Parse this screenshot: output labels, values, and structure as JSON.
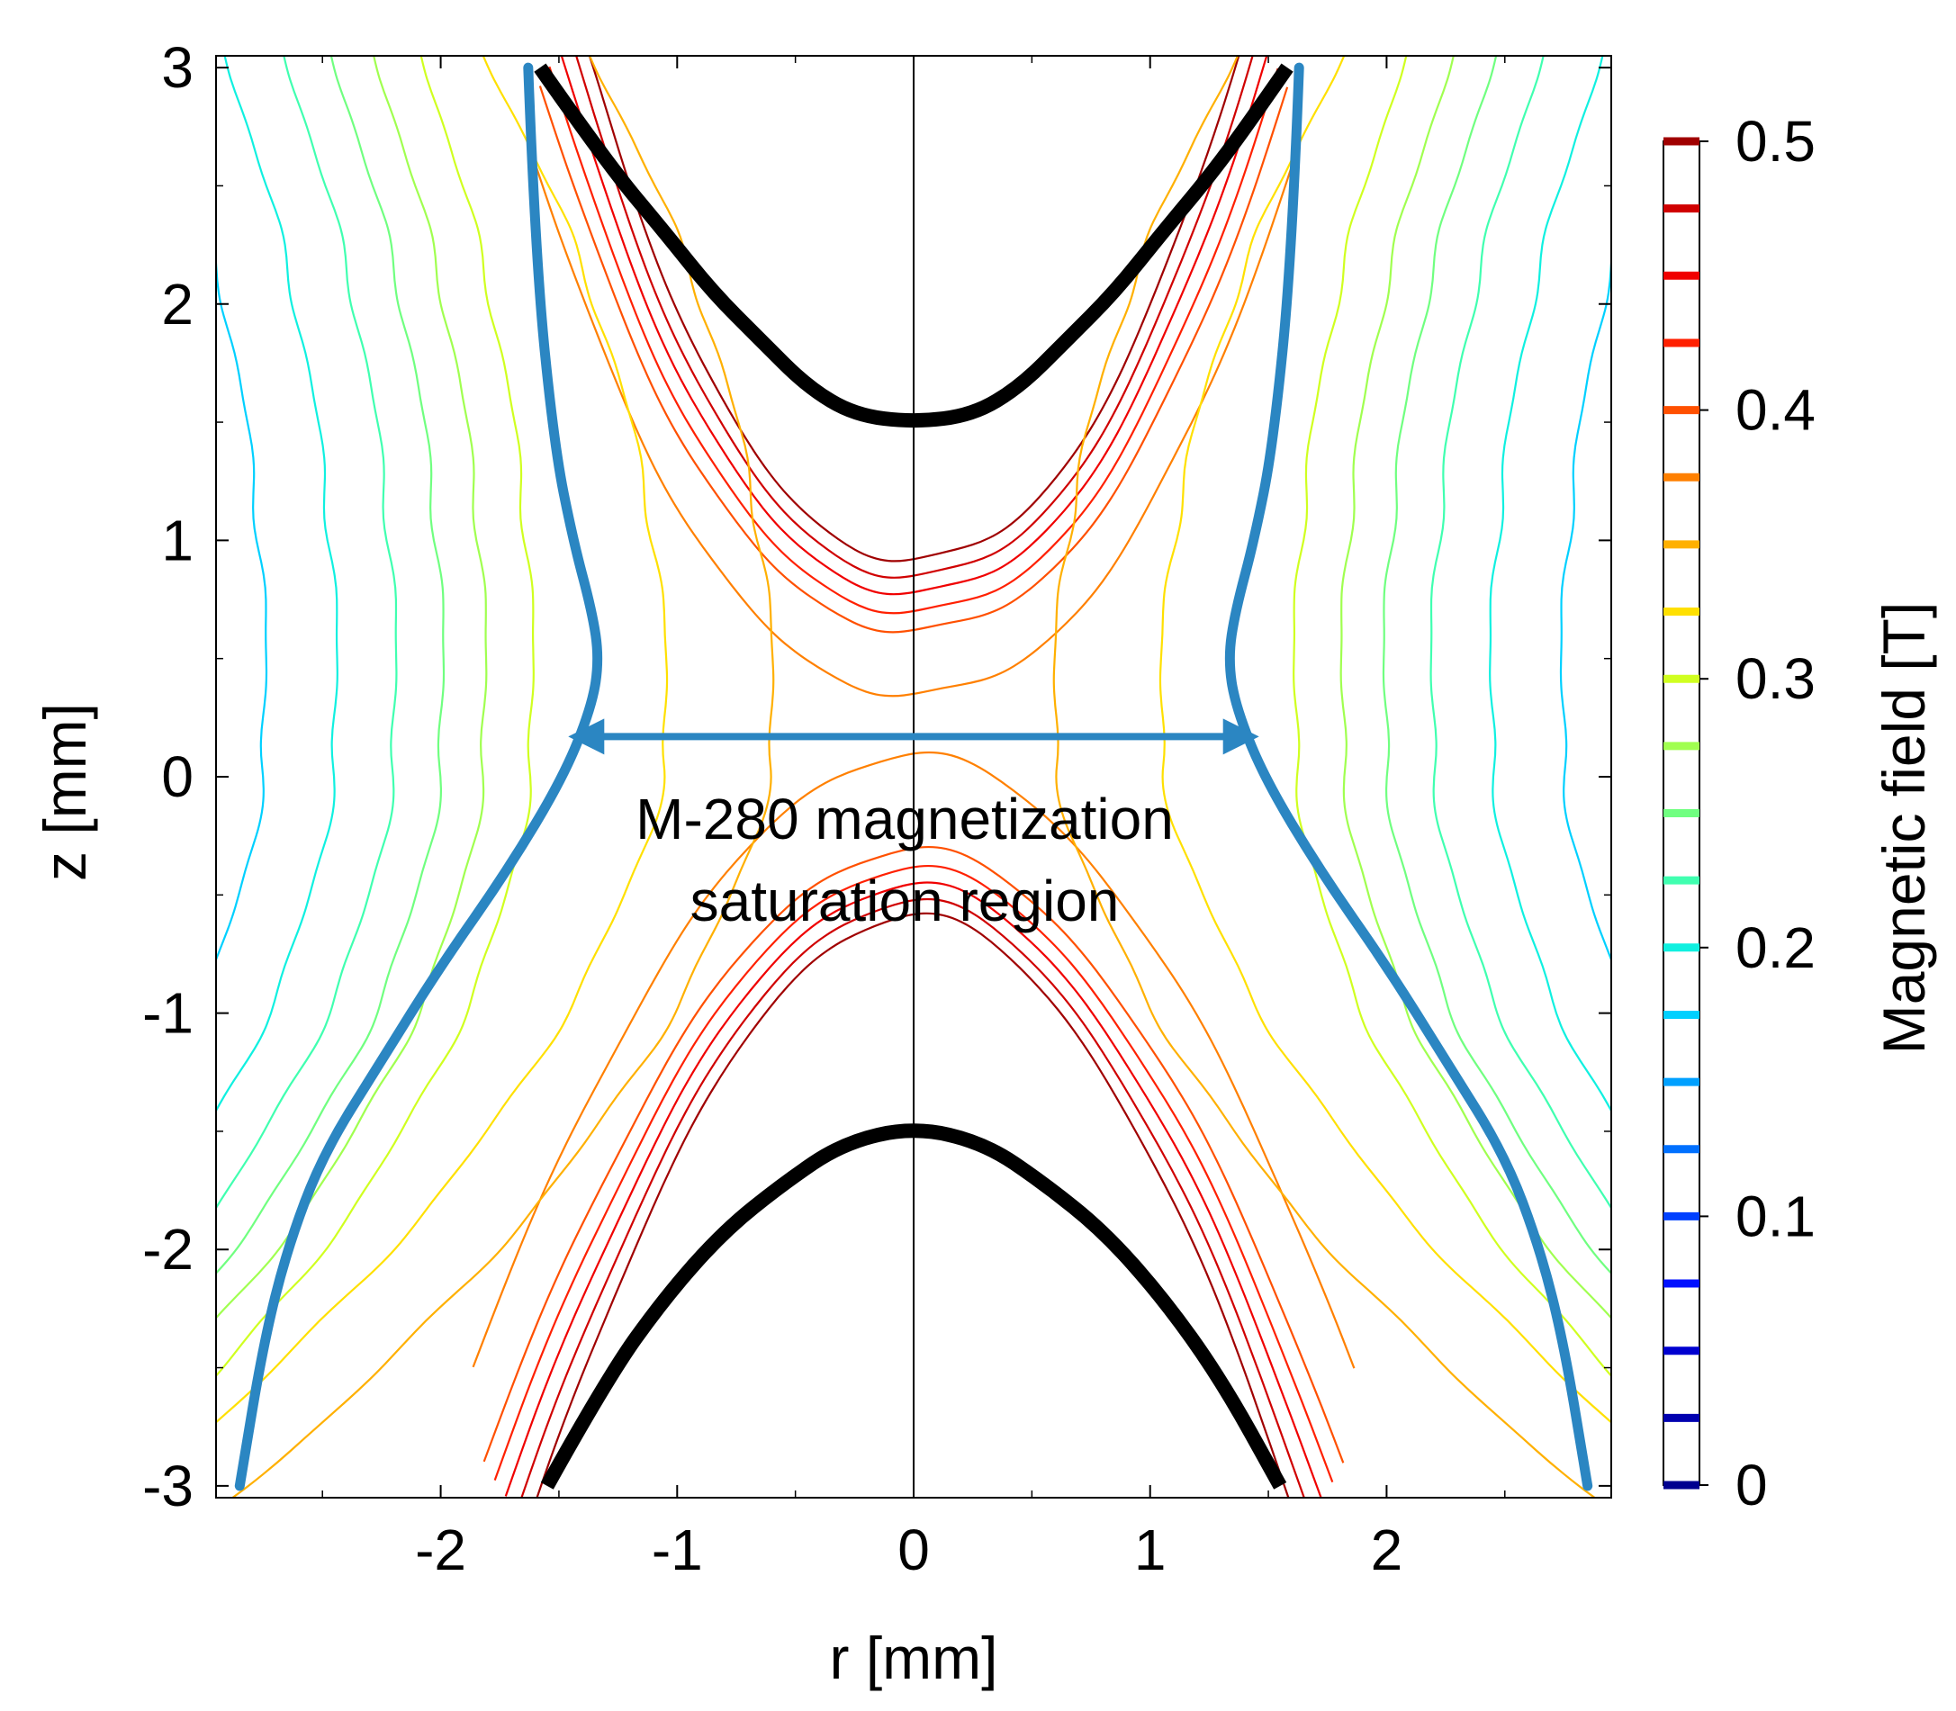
{
  "chart_data": {
    "type": "contour",
    "xlabel": "r [mm]",
    "ylabel": "z [mm]",
    "xlim": [
      -2.95,
      2.95
    ],
    "ylim": [
      -3.05,
      3.05
    ],
    "x_ticks": [
      "-2",
      "-1",
      "0",
      "1",
      "2"
    ],
    "x_tick_values": [
      -2,
      -1,
      0,
      1,
      2
    ],
    "y_ticks": [
      "-3",
      "-2",
      "-1",
      "0",
      "1",
      "2",
      "3"
    ],
    "y_tick_values": [
      -3,
      -2,
      -1,
      0,
      1,
      2,
      3
    ],
    "colorbar": {
      "label": "Magnetic field [T]",
      "range": [
        0,
        0.5
      ],
      "tick_labels": [
        "0",
        "0.1",
        "0.2",
        "0.3",
        "0.4",
        "0.5"
      ],
      "tick_values": [
        0,
        0.1,
        0.2,
        0.3,
        0.4,
        0.5
      ],
      "levels": [
        0,
        0.025,
        0.05,
        0.075,
        0.1,
        0.125,
        0.15,
        0.175,
        0.2,
        0.225,
        0.25,
        0.275,
        0.3,
        0.325,
        0.35,
        0.375,
        0.4,
        0.425,
        0.45,
        0.475,
        0.5
      ],
      "level_colors": [
        "#00008f",
        "#0000b0",
        "#0000d0",
        "#0010ff",
        "#0040ff",
        "#0070ff",
        "#00a0ff",
        "#00d0ff",
        "#10f0e0",
        "#40ffb0",
        "#70ff80",
        "#a0ff50",
        "#d0ff20",
        "#ffe000",
        "#ffb000",
        "#ff8000",
        "#ff5000",
        "#ff2000",
        "#f00000",
        "#d00000",
        "#a00000"
      ]
    },
    "pole_pieces": [
      {
        "name": "upper pole",
        "r": [
          -1.58,
          -1.3,
          -1.05,
          -0.85,
          -0.65,
          -0.45,
          -0.25,
          0,
          0.25,
          0.45,
          0.65,
          0.85,
          1.05,
          1.3,
          1.58
        ],
        "z": [
          3.0,
          2.6,
          2.3,
          2.05,
          1.85,
          1.65,
          1.53,
          1.5,
          1.53,
          1.65,
          1.85,
          2.05,
          2.3,
          2.6,
          3.0
        ]
      },
      {
        "name": "lower pole",
        "r": [
          -1.55,
          -1.3,
          -1.05,
          -0.8,
          -0.55,
          -0.3,
          0,
          0.3,
          0.55,
          0.8,
          1.05,
          1.3,
          1.55
        ],
        "z": [
          -3.0,
          -2.55,
          -2.2,
          -1.92,
          -1.72,
          -1.55,
          -1.48,
          -1.55,
          -1.72,
          -1.92,
          -2.2,
          -2.55,
          -3.0
        ]
      }
    ],
    "saturation_boundary": {
      "color": "#2b86c2",
      "r": [
        1.63,
        1.6,
        1.52,
        1.44,
        1.36,
        1.33,
        1.36,
        1.48,
        1.72,
        2.0,
        2.25,
        2.5,
        2.65,
        2.75,
        2.85
      ],
      "z": [
        3.0,
        2.2,
        1.4,
        1.0,
        0.7,
        0.5,
        0.3,
        0.0,
        -0.4,
        -0.8,
        -1.2,
        -1.6,
        -2.0,
        -2.4,
        -3.0
      ]
    },
    "field_contours": [
      {
        "value": 0.5,
        "color": "#a00000",
        "r_mid": 0.0,
        "z_top": 0.92,
        "z_bot": -0.58
      },
      {
        "value": 0.475,
        "color": "#d00000",
        "r_mid": 0.0,
        "z_top": 0.85,
        "z_bot": -0.52
      },
      {
        "value": 0.45,
        "color": "#f00000",
        "r_mid": 0.0,
        "z_top": 0.78,
        "z_bot": -0.45
      },
      {
        "value": 0.425,
        "color": "#ff2000",
        "r_mid": 0.0,
        "z_top": 0.7,
        "z_bot": -0.38
      },
      {
        "value": 0.4,
        "color": "#ff5000",
        "r_mid": 0.0,
        "z_top": 0.62,
        "z_bot": -0.3
      },
      {
        "value": 0.375,
        "color": "#ff8000",
        "r_mid": 0.0,
        "z_top": 0.35,
        "z_bot": 0.1
      },
      {
        "value": 0.35,
        "color": "#ffb000",
        "r_mid": 0.6
      },
      {
        "value": 0.325,
        "color": "#ffe000",
        "r_mid": 1.05
      },
      {
        "value": 0.3,
        "color": "#d0ff20",
        "r_mid": 1.62
      },
      {
        "value": 0.275,
        "color": "#a0ff50",
        "r_mid": 1.82
      },
      {
        "value": 0.25,
        "color": "#70ff80",
        "r_mid": 2.0
      },
      {
        "value": 0.225,
        "color": "#40ffb0",
        "r_mid": 2.2
      },
      {
        "value": 0.2,
        "color": "#10f0e0",
        "r_mid": 2.45
      },
      {
        "value": 0.175,
        "color": "#00d0ff",
        "r_mid": 2.75
      }
    ],
    "annotations": [
      {
        "text": "M-280 magnetization",
        "r": 0.0,
        "z": -0.15
      },
      {
        "text": "saturation region",
        "r": 0.0,
        "z": -0.52
      }
    ],
    "arrow": {
      "from_r": -1.43,
      "to_r": 1.43,
      "z": 0.17,
      "color": "#2b86c2"
    }
  }
}
